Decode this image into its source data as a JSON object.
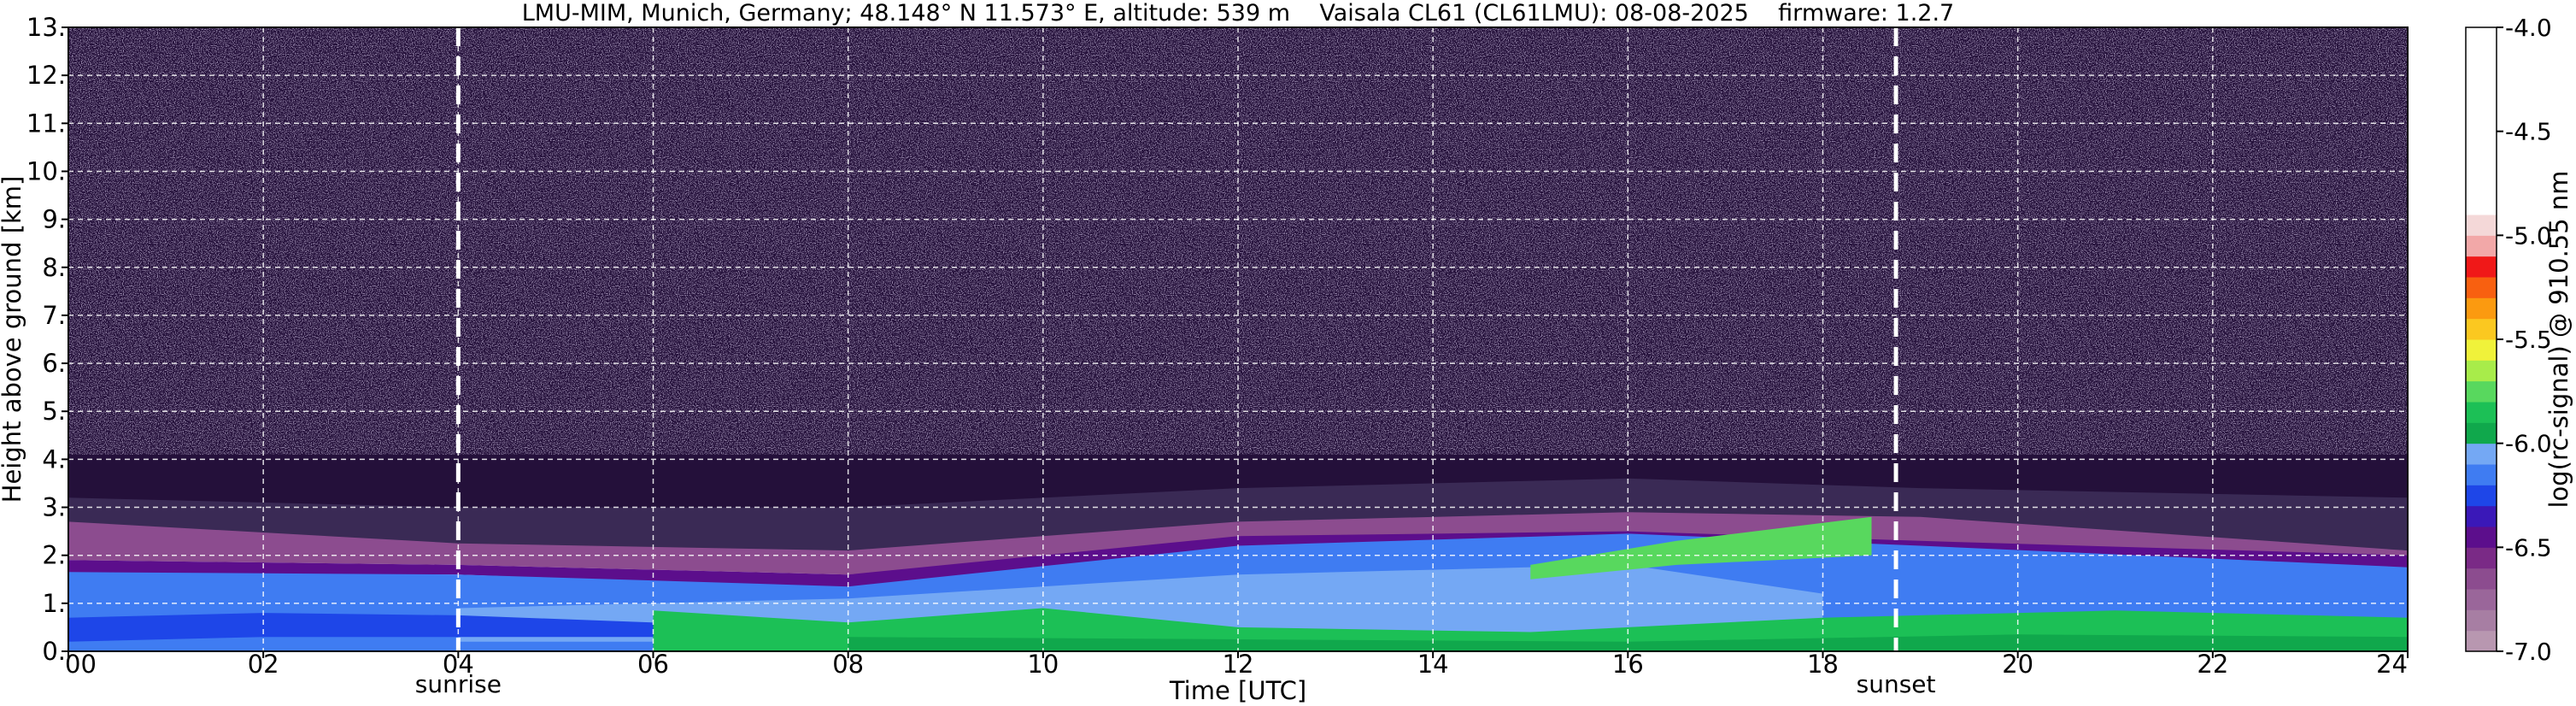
{
  "chart_data": {
    "type": "heatmap",
    "title": "LMU-MIM, Munich, Germany; 48.148° N 11.573° E, altitude: 539 m    Vaisala CL61 (CL61LMU): 08-08-2025    firmware: 1.2.7",
    "xlabel": "Time [UTC]",
    "ylabel": "Height above ground [km]",
    "xlim": [
      0,
      24
    ],
    "ylim": [
      0,
      13
    ],
    "x_ticks": [
      0,
      2,
      4,
      6,
      8,
      10,
      12,
      14,
      16,
      18,
      20,
      22,
      24
    ],
    "x_tick_labels": [
      "00",
      "02",
      "04",
      "06",
      "08",
      "10",
      "12",
      "14",
      "16",
      "18",
      "20",
      "22",
      "24"
    ],
    "y_ticks": [
      0,
      1,
      2,
      3,
      4,
      5,
      6,
      7,
      8,
      9,
      10,
      11,
      12,
      13
    ],
    "y_tick_labels": [
      "0.",
      "1.",
      "2.",
      "3.",
      "4.",
      "5.",
      "6.",
      "7.",
      "8.",
      "9.",
      "10.",
      "11.",
      "12.",
      "13."
    ],
    "grid": true,
    "markers": [
      {
        "label": "sunrise",
        "x": 4.0
      },
      {
        "label": "sunset",
        "x": 18.75
      }
    ],
    "colorbar": {
      "label": "log(rc-signal) @ 910.55 nm",
      "range": [
        -7.0,
        -4.0
      ],
      "ticks": [
        -4.0,
        -4.5,
        -5.0,
        -5.5,
        -6.0,
        -6.5,
        -7.0
      ],
      "tick_labels": [
        "-4.0",
        "-4.5",
        "-5.0",
        "-5.5",
        "-6.0",
        "-6.5",
        "-7.0"
      ],
      "bands": [
        {
          "from": -7.0,
          "to": -6.9,
          "color": "#b897b0"
        },
        {
          "from": -6.9,
          "to": -6.8,
          "color": "#a77ea3"
        },
        {
          "from": -6.8,
          "to": -6.7,
          "color": "#9a669a"
        },
        {
          "from": -6.7,
          "to": -6.6,
          "color": "#8c4c8f"
        },
        {
          "from": -6.6,
          "to": -6.5,
          "color": "#7a2a86"
        },
        {
          "from": -6.5,
          "to": -6.4,
          "color": "#5c0e8c"
        },
        {
          "from": -6.4,
          "to": -6.3,
          "color": "#3a18b8"
        },
        {
          "from": -6.3,
          "to": -6.2,
          "color": "#1e46e8"
        },
        {
          "from": -6.2,
          "to": -6.1,
          "color": "#3f7cf2"
        },
        {
          "from": -6.1,
          "to": -6.0,
          "color": "#74a8f4"
        },
        {
          "from": -6.0,
          "to": -5.9,
          "color": "#10a84c"
        },
        {
          "from": -5.9,
          "to": -5.8,
          "color": "#1cc056"
        },
        {
          "from": -5.8,
          "to": -5.7,
          "color": "#58d85e"
        },
        {
          "from": -5.7,
          "to": -5.6,
          "color": "#a8ec4a"
        },
        {
          "from": -5.6,
          "to": -5.5,
          "color": "#f0f23a"
        },
        {
          "from": -5.5,
          "to": -5.4,
          "color": "#fbc820"
        },
        {
          "from": -5.4,
          "to": -5.3,
          "color": "#fb9a10"
        },
        {
          "from": -5.3,
          "to": -5.2,
          "color": "#f86010"
        },
        {
          "from": -5.2,
          "to": -5.1,
          "color": "#f01818"
        },
        {
          "from": -5.1,
          "to": -5.0,
          "color": "#f2a8a8"
        },
        {
          "from": -5.0,
          "to": -4.9,
          "color": "#f4d8d8"
        },
        {
          "from": -4.9,
          "to": -4.0,
          "color": "#ffffff"
        }
      ]
    },
    "layers": [
      {
        "color": "#24103a",
        "t": [
          0,
          24
        ],
        "bottom": [
          3.0,
          3.0
        ],
        "top": [
          13.0,
          13.0
        ]
      },
      {
        "color": "#3a2a55",
        "t": [
          0,
          4,
          8,
          12,
          16,
          19,
          24
        ],
        "bottom": [
          2.2,
          2.1,
          2.0,
          2.5,
          2.6,
          2.4,
          2.1
        ],
        "top": [
          3.2,
          3.0,
          3.0,
          3.4,
          3.6,
          3.4,
          3.2
        ]
      },
      {
        "color": "#8c4c8f",
        "t": [
          0,
          4,
          8,
          12,
          16,
          19,
          24
        ],
        "bottom": [
          1.9,
          1.8,
          1.6,
          2.1,
          2.3,
          2.1,
          1.9
        ],
        "top": [
          2.7,
          2.25,
          2.1,
          2.7,
          2.9,
          2.8,
          2.1
        ]
      },
      {
        "color": "#5c0e8c",
        "t": [
          0,
          4,
          8,
          12,
          16,
          19,
          24
        ],
        "bottom": [
          1.6,
          1.6,
          1.3,
          1.9,
          2.1,
          1.9,
          1.7
        ],
        "top": [
          1.9,
          1.8,
          1.6,
          2.4,
          2.5,
          2.3,
          2.0
        ]
      },
      {
        "color": "#3f7cf2",
        "t": [
          0,
          4,
          8,
          12,
          16,
          19,
          24
        ],
        "bottom": [
          0.0,
          0.0,
          0.0,
          0.0,
          0.0,
          0.0,
          0.0
        ],
        "top": [
          1.65,
          1.6,
          1.35,
          2.2,
          2.45,
          2.2,
          1.75
        ]
      },
      {
        "color": "#74a8f4",
        "t": [
          4,
          8,
          12,
          16,
          18
        ],
        "bottom": [
          0.2,
          0.2,
          0.3,
          0.4,
          0.3
        ],
        "top": [
          0.9,
          1.1,
          1.6,
          1.8,
          1.2
        ]
      },
      {
        "color": "#1e46e8",
        "t": [
          0,
          2,
          4,
          6
        ],
        "bottom": [
          0.2,
          0.3,
          0.3,
          0.3
        ],
        "top": [
          0.7,
          0.8,
          0.75,
          0.6
        ]
      },
      {
        "color": "#1cc056",
        "t": [
          6,
          8,
          10,
          12,
          15,
          18,
          21,
          24
        ],
        "bottom": [
          0.0,
          0.0,
          0.0,
          0.0,
          0.0,
          0.0,
          0.0,
          0.0
        ],
        "top": [
          0.85,
          0.6,
          0.9,
          0.5,
          0.4,
          0.7,
          0.85,
          0.7
        ]
      },
      {
        "color": "#10a84c",
        "t": [
          8,
          12,
          16,
          20,
          24
        ],
        "bottom": [
          0.0,
          0.0,
          0.0,
          0.0,
          0.0
        ],
        "top": [
          0.3,
          0.25,
          0.2,
          0.35,
          0.3
        ]
      },
      {
        "color": "#58d85e",
        "t": [
          15,
          16.5,
          18.5
        ],
        "bottom": [
          1.5,
          1.8,
          2.0
        ],
        "top": [
          1.8,
          2.3,
          2.8
        ]
      }
    ]
  }
}
